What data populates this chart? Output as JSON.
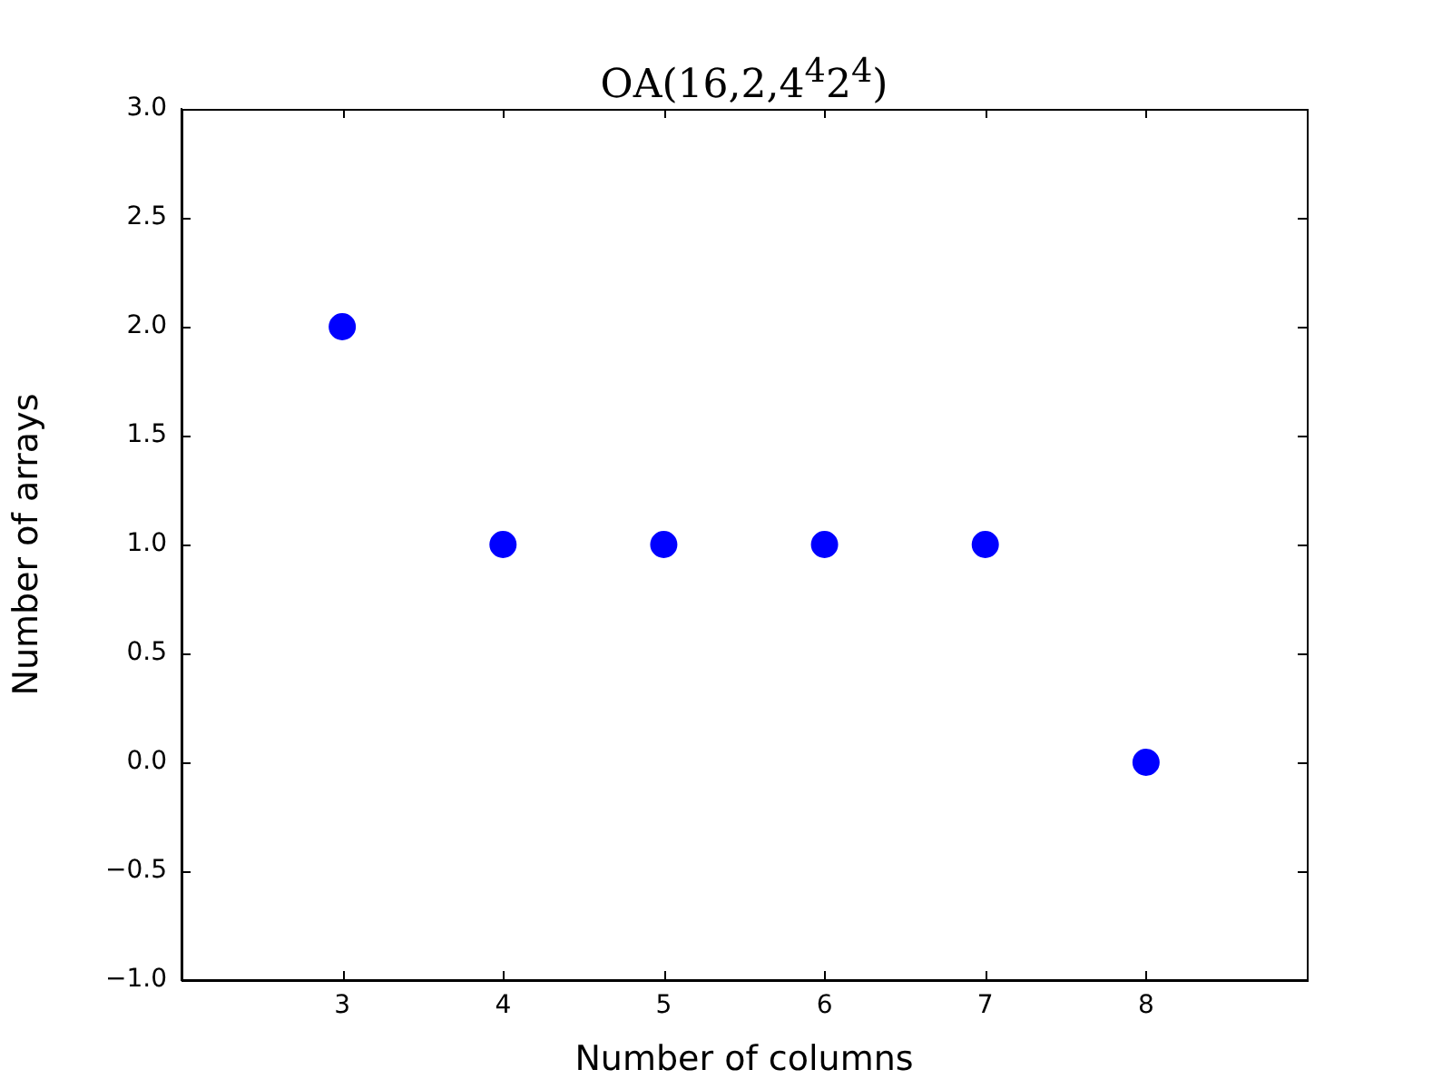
{
  "chart_data": {
    "type": "scatter",
    "title": "OA(16,2,4$^{4}$2$^{4}$)",
    "xlabel": "Number of columns",
    "ylabel": "Number of arrays",
    "x": [
      3,
      4,
      5,
      6,
      7,
      8
    ],
    "series": [
      {
        "color": "#0000ff",
        "values": [
          2,
          1,
          1,
          1,
          1,
          0
        ]
      }
    ],
    "xlim": [
      2,
      9
    ],
    "xticks": [
      3,
      4,
      5,
      6,
      7,
      8
    ],
    "ylim": [
      -1,
      3
    ],
    "yticks": [
      {
        "value": -1,
        "label": "−1.0"
      },
      {
        "value": -0.5,
        "label": "−0.5"
      },
      {
        "value": 0,
        "label": "0.0"
      },
      {
        "value": 0.5,
        "label": "0.5"
      },
      {
        "value": 1,
        "label": "1.0"
      },
      {
        "value": 1.5,
        "label": "1.5"
      },
      {
        "value": 2,
        "label": "2.0"
      },
      {
        "value": 2.5,
        "label": "2.5"
      },
      {
        "value": 3,
        "label": "3.0"
      }
    ],
    "marker": "circle",
    "grid": false,
    "legend": false
  }
}
